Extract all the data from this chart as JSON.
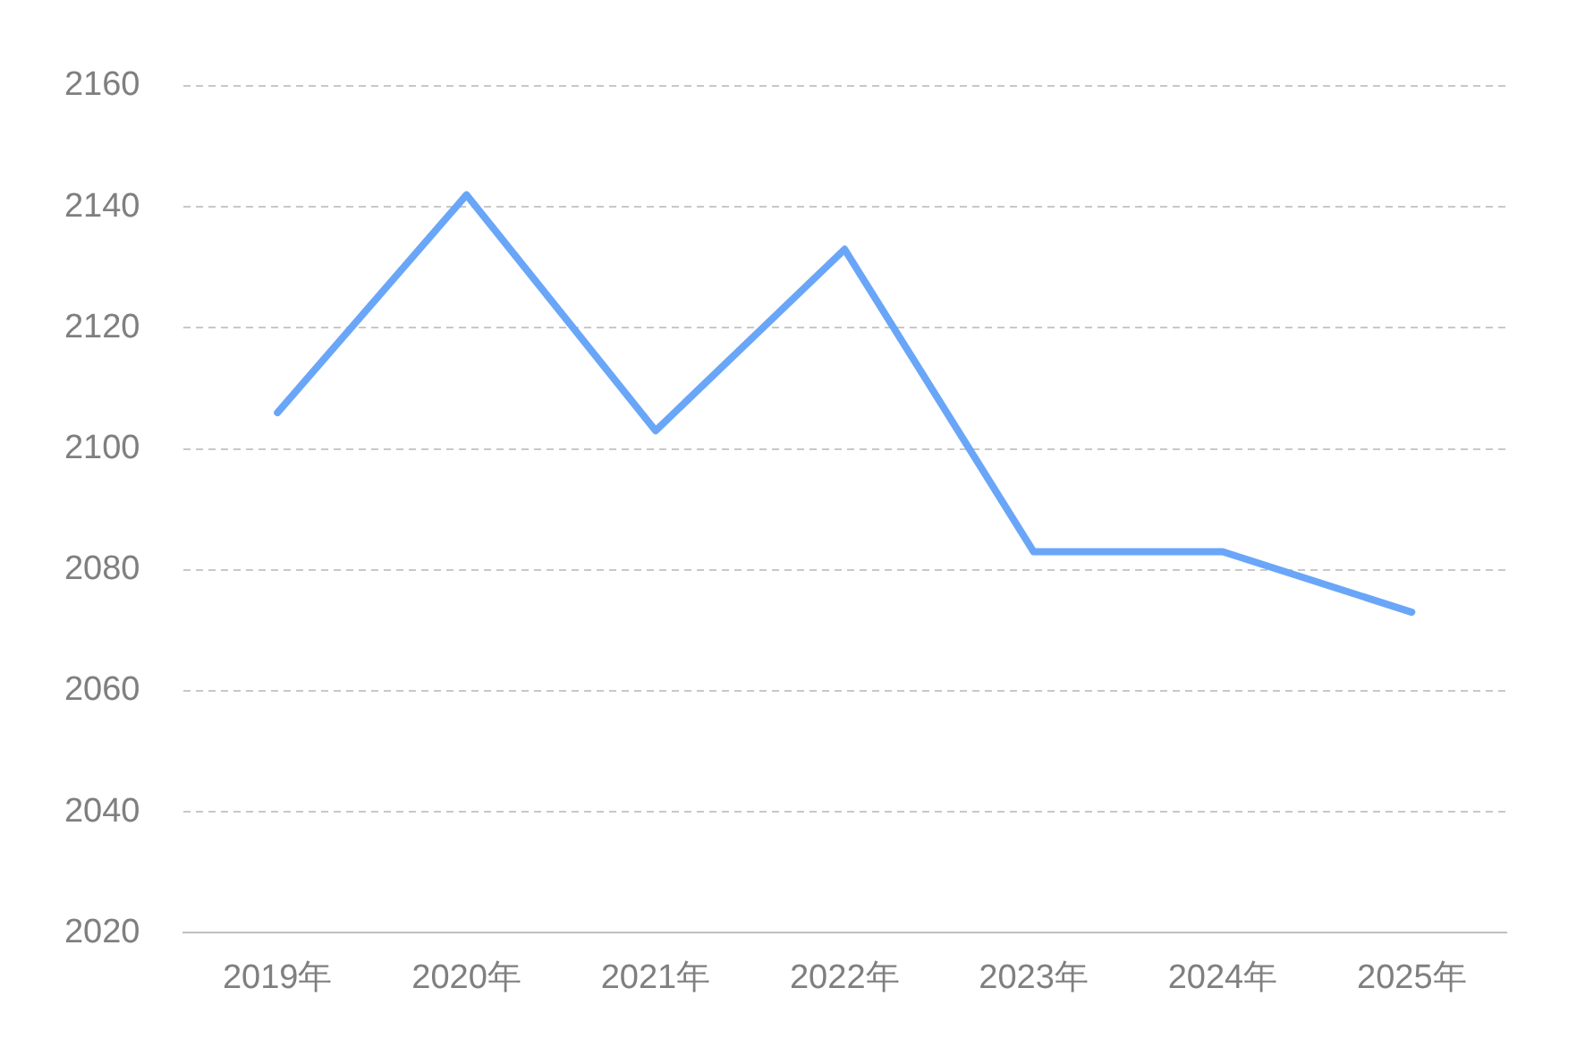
{
  "chart_data": {
    "type": "line",
    "categories": [
      "2019年",
      "2020年",
      "2021年",
      "2022年",
      "2023年",
      "2024年",
      "2025年"
    ],
    "series": [
      {
        "color": "#6aa6f8",
        "values": [
          2106,
          2142,
          2103,
          2133,
          2083,
          2083,
          2073
        ]
      }
    ],
    "ylim": [
      2020,
      2160
    ],
    "yticks": [
      2020,
      2040,
      2060,
      2080,
      2100,
      2120,
      2140,
      2160
    ],
    "grid": "y",
    "legend": false,
    "marker": "none",
    "line_style": "solid"
  }
}
